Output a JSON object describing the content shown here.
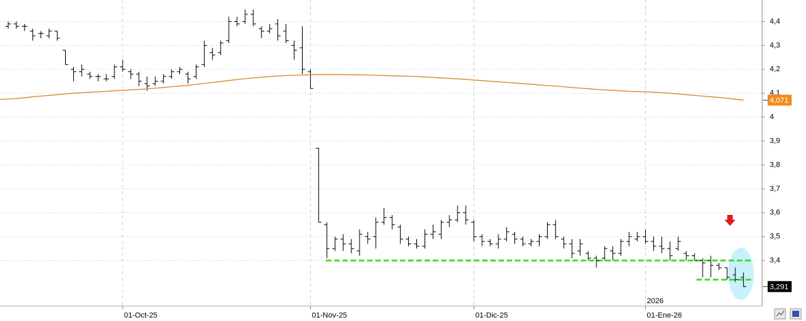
{
  "chart_data": {
    "type": "ohlc",
    "categories": [
      null,
      null,
      null,
      null,
      null,
      null,
      null,
      null,
      null,
      null,
      null,
      null,
      null,
      null,
      "01-Oct-25",
      null,
      null,
      null,
      null,
      null,
      null,
      null,
      null,
      null,
      null,
      null,
      null,
      null,
      null,
      null,
      null,
      null,
      null,
      null,
      null,
      null,
      null,
      "01-Nov-25",
      null,
      null,
      null,
      null,
      null,
      null,
      null,
      null,
      null,
      null,
      null,
      null,
      null,
      null,
      null,
      null,
      null,
      null,
      null,
      "01-Dic-25",
      null,
      null,
      null,
      null,
      null,
      null,
      null,
      null,
      null,
      null,
      null,
      null,
      null,
      null,
      null,
      null,
      null,
      null,
      null,
      null,
      "01-Ene-26",
      null,
      null,
      null,
      null,
      null,
      null,
      null,
      null,
      null,
      null,
      null,
      null
    ],
    "year_label": "2026",
    "ylim": [
      3.21,
      4.49
    ],
    "yticks": [
      {
        "value": 3.4,
        "label": "3,4"
      },
      {
        "value": 3.5,
        "label": "3,5"
      },
      {
        "value": 3.6,
        "label": "3,6"
      },
      {
        "value": 3.7,
        "label": "3,7"
      },
      {
        "value": 3.8,
        "label": "3,8"
      },
      {
        "value": 3.9,
        "label": "3,9"
      },
      4,
      {
        "value": 4.1,
        "label": "4,1"
      },
      {
        "value": 4.2,
        "label": "4,2"
      },
      {
        "value": 4.3,
        "label": "4,3"
      },
      {
        "value": 4.4,
        "label": "4,4"
      }
    ],
    "grid": true,
    "series": [
      {
        "type": "ohlc",
        "color": "#000000",
        "open": [
          4.38,
          4.39,
          4.38,
          4.36,
          4.35,
          4.34,
          4.36,
          4.28,
          4.2,
          4.19,
          4.18,
          4.17,
          4.16,
          4.17,
          4.21,
          4.19,
          4.18,
          4.14,
          4.14,
          4.15,
          4.17,
          4.19,
          4.18,
          4.17,
          4.22,
          4.27,
          4.27,
          4.32,
          4.4,
          4.4,
          4.43,
          4.37,
          4.36,
          4.39,
          4.36,
          4.3,
          4.29,
          4.19,
          3.87,
          3.55,
          3.45,
          3.49,
          3.47,
          3.44,
          3.5,
          3.5,
          3.56,
          3.58,
          3.54,
          3.49,
          3.47,
          3.46,
          3.51,
          3.51,
          3.56,
          3.57,
          3.6,
          3.56,
          3.5,
          3.48,
          3.47,
          3.49,
          3.51,
          3.49,
          3.47,
          3.48,
          3.5,
          3.55,
          3.49,
          3.47,
          3.44,
          3.43,
          3.41,
          3.41,
          3.44,
          3.43,
          3.48,
          3.49,
          3.5,
          3.48,
          3.46,
          3.45,
          3.45,
          3.43,
          3.42,
          3.4,
          3.4,
          3.38,
          3.37,
          3.34,
          3.33
        ],
        "high": [
          4.4,
          4.4,
          4.39,
          4.37,
          4.36,
          4.37,
          4.36,
          4.28,
          4.21,
          4.22,
          4.19,
          4.18,
          4.18,
          4.22,
          4.24,
          4.2,
          4.19,
          4.17,
          4.17,
          4.18,
          4.2,
          4.21,
          4.19,
          4.22,
          4.32,
          4.29,
          4.32,
          4.42,
          4.42,
          4.45,
          4.45,
          4.38,
          4.39,
          4.41,
          4.39,
          4.32,
          4.38,
          4.2,
          3.87,
          3.56,
          3.5,
          3.51,
          3.49,
          3.53,
          3.52,
          3.58,
          3.62,
          3.59,
          3.55,
          3.5,
          3.49,
          3.53,
          3.55,
          3.57,
          3.59,
          3.63,
          3.63,
          3.57,
          3.51,
          3.49,
          3.51,
          3.54,
          3.52,
          3.5,
          3.49,
          3.51,
          3.56,
          3.57,
          3.5,
          3.49,
          3.49,
          3.44,
          3.42,
          3.46,
          3.46,
          3.49,
          3.52,
          3.52,
          3.53,
          3.5,
          3.5,
          3.48,
          3.5,
          3.44,
          3.43,
          3.41,
          3.42,
          3.39,
          3.37,
          3.37,
          3.35
        ],
        "low": [
          4.37,
          4.37,
          4.36,
          4.32,
          4.33,
          4.33,
          4.32,
          4.22,
          4.15,
          4.17,
          4.16,
          4.15,
          4.15,
          4.16,
          4.19,
          4.16,
          4.13,
          4.11,
          4.13,
          4.14,
          4.16,
          4.18,
          4.14,
          4.16,
          4.21,
          4.24,
          4.26,
          4.31,
          4.38,
          4.39,
          4.38,
          4.33,
          4.35,
          4.32,
          4.31,
          4.24,
          4.18,
          4.12,
          3.56,
          3.41,
          3.44,
          3.44,
          3.43,
          3.42,
          3.47,
          3.45,
          3.55,
          3.53,
          3.47,
          3.46,
          3.45,
          3.45,
          3.49,
          3.49,
          3.54,
          3.56,
          3.55,
          3.48,
          3.46,
          3.46,
          3.45,
          3.48,
          3.47,
          3.46,
          3.46,
          3.46,
          3.49,
          3.49,
          3.45,
          3.41,
          3.42,
          3.4,
          3.37,
          3.4,
          3.4,
          3.42,
          3.46,
          3.48,
          3.47,
          3.44,
          3.43,
          3.4,
          3.44,
          3.4,
          3.4,
          3.33,
          3.33,
          3.36,
          3.32,
          3.31,
          3.29
        ],
        "close": [
          4.39,
          4.38,
          4.38,
          4.34,
          4.35,
          4.36,
          4.33,
          4.22,
          4.19,
          4.2,
          4.17,
          4.17,
          4.16,
          4.21,
          4.2,
          4.18,
          4.15,
          4.13,
          4.15,
          4.17,
          4.19,
          4.2,
          4.16,
          4.21,
          4.3,
          4.26,
          4.31,
          4.4,
          4.39,
          4.43,
          4.39,
          4.36,
          4.37,
          4.34,
          4.32,
          4.28,
          4.2,
          4.12,
          3.56,
          3.45,
          3.49,
          3.47,
          3.45,
          3.51,
          3.49,
          3.56,
          3.58,
          3.55,
          3.49,
          3.47,
          3.46,
          3.51,
          3.52,
          3.56,
          3.57,
          3.6,
          3.57,
          3.5,
          3.48,
          3.47,
          3.49,
          3.52,
          3.49,
          3.47,
          3.48,
          3.5,
          3.55,
          3.5,
          3.47,
          3.43,
          3.47,
          3.41,
          3.4,
          3.45,
          3.43,
          3.48,
          3.5,
          3.5,
          3.48,
          3.46,
          3.45,
          3.42,
          3.48,
          3.42,
          3.4,
          3.39,
          3.38,
          3.37,
          3.33,
          3.32,
          3.291
        ],
        "last_label": "3,291"
      },
      {
        "type": "line",
        "color": "#d9892a",
        "values": [
          4.074,
          4.078,
          4.081,
          4.085,
          4.088,
          4.091,
          4.094,
          4.097,
          4.1,
          4.102,
          4.104,
          4.106,
          4.108,
          4.11,
          4.112,
          4.114,
          4.116,
          4.118,
          4.121,
          4.124,
          4.127,
          4.13,
          4.133,
          4.137,
          4.141,
          4.145,
          4.149,
          4.153,
          4.157,
          4.161,
          4.164,
          4.167,
          4.17,
          4.172,
          4.174,
          4.175,
          4.176,
          4.177,
          4.178,
          4.178,
          4.178,
          4.178,
          4.177,
          4.177,
          4.176,
          4.175,
          4.174,
          4.173,
          4.172,
          4.171,
          4.17,
          4.168,
          4.166,
          4.164,
          4.162,
          4.16,
          4.158,
          4.155,
          4.153,
          4.15,
          4.148,
          4.145,
          4.143,
          4.14,
          4.138,
          4.135,
          4.132,
          4.13,
          4.127,
          4.124,
          4.121,
          4.119,
          4.116,
          4.114,
          4.112,
          4.11,
          4.108,
          4.107,
          4.106,
          4.104,
          4.102,
          4.1,
          4.097,
          4.094,
          4.091,
          4.088,
          4.085,
          4.082,
          4.079,
          4.075,
          4.071
        ],
        "last_label": "4,071"
      }
    ],
    "hlines": [
      {
        "value": 3.4,
        "color": "#33dd11"
      },
      {
        "value": 3.32,
        "color": "#33dd11"
      }
    ]
  }
}
